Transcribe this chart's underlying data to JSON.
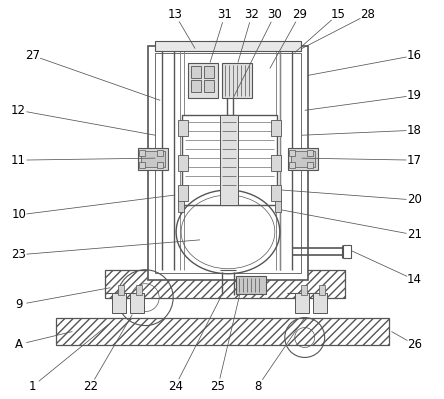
{
  "bg_color": "#ffffff",
  "line_color": "#555555",
  "fig_width": 4.44,
  "fig_height": 3.99,
  "dpi": 100
}
